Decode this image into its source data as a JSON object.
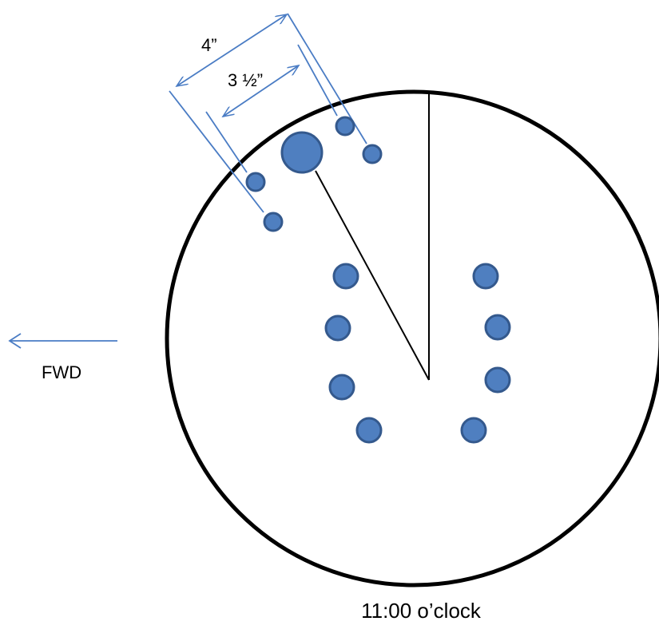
{
  "labels": {
    "dim_outer": "4”",
    "dim_inner": "3 ½”",
    "direction": "FWD",
    "caption": "11:00 o’clock"
  },
  "colors": {
    "hole_fill": "#4f7fc0",
    "hole_stroke": "#34598d",
    "dimension_line": "#4a7cc4",
    "outline": "#000000"
  },
  "icons": {
    "direction_arrow": "arrow-left-icon"
  }
}
